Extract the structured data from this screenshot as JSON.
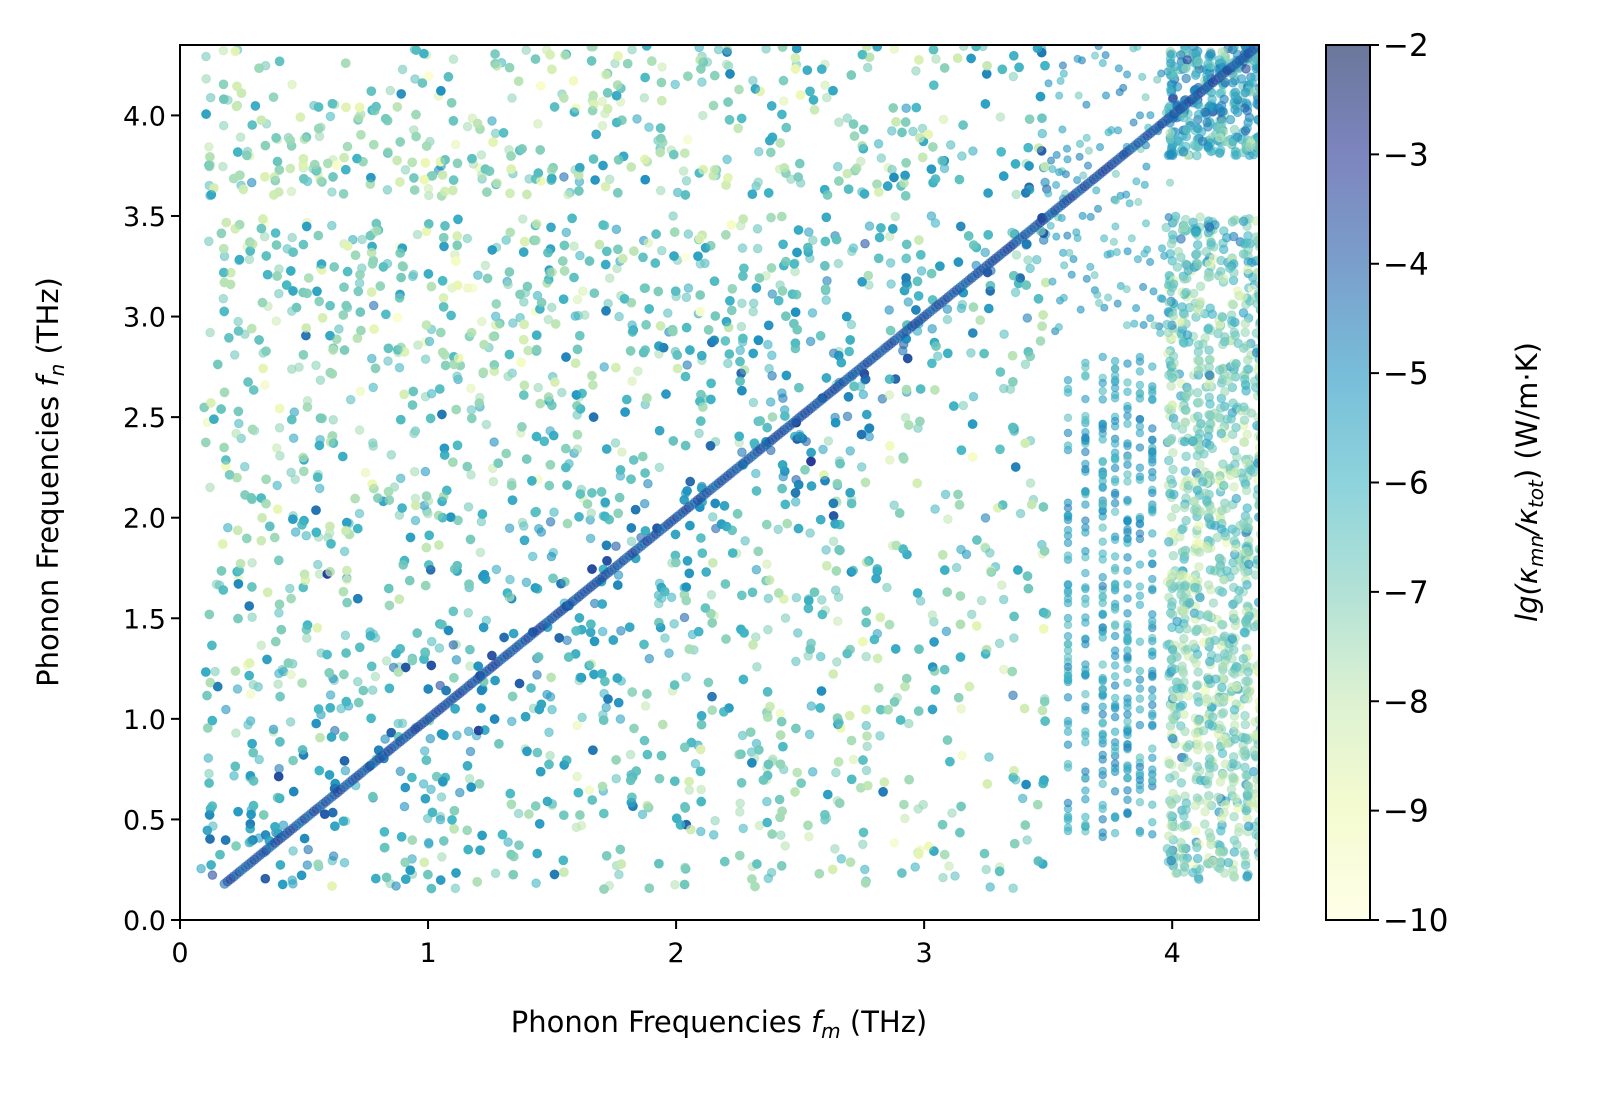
{
  "chart_data": {
    "type": "scatter",
    "xlabel_main": "Phonon Frequencies",
    "xlabel_var": "f",
    "xlabel_sub": "m",
    "xlabel_unit": "(THz)",
    "ylabel_main": "Phonon Frequencies",
    "ylabel_var": "f",
    "ylabel_sub": "n",
    "ylabel_unit": "(THz)",
    "xlim": [
      0,
      4.35
    ],
    "ylim": [
      0,
      4.35
    ],
    "x_ticks": [
      0,
      1,
      2,
      3,
      4
    ],
    "x_tick_labels": [
      "0",
      "1",
      "2",
      "3",
      "4"
    ],
    "y_ticks": [
      0,
      0.5,
      1.0,
      1.5,
      2.0,
      2.5,
      3.0,
      3.5,
      4.0
    ],
    "y_tick_labels": [
      "0.0",
      "0.5",
      "1.0",
      "1.5",
      "2.0",
      "2.5",
      "3.0",
      "3.5",
      "4.0"
    ],
    "colorbar": {
      "label_prefix": "lg(",
      "label_kappa1": "κ",
      "label_sub1": "mn",
      "label_slash": "/",
      "label_kappa2": "κ",
      "label_sub2": "tot",
      "label_suffix": ") (W/m·K)",
      "range": [
        -10,
        -2
      ],
      "ticks": [
        -10,
        -9,
        -8,
        -7,
        -6,
        -5,
        -4,
        -3,
        -2
      ],
      "tick_labels": [
        "−10",
        "−9",
        "−8",
        "−7",
        "−6",
        "−5",
        "−4",
        "−3",
        "−2"
      ],
      "colormap": "YlGnBu",
      "colormap_stops": [
        "#ffffd9",
        "#edf8b1",
        "#c7e9b4",
        "#7fcdbb",
        "#41b6c4",
        "#1d91c0",
        "#225ea8",
        "#253494",
        "#081d58"
      ]
    },
    "point_alpha": 0.6,
    "grid": false,
    "summary": {
      "diagonal_value_range": [
        -5,
        -3
      ],
      "dense_region_x": [
        0.1,
        2.8
      ],
      "dense_region_y": [
        0.1,
        2.8
      ],
      "high_band_y": [
        3.5,
        4.35
      ],
      "mid_band_y": [
        2.8,
        3.5
      ],
      "sparse_gap_x": [
        3.5,
        3.95
      ]
    }
  }
}
